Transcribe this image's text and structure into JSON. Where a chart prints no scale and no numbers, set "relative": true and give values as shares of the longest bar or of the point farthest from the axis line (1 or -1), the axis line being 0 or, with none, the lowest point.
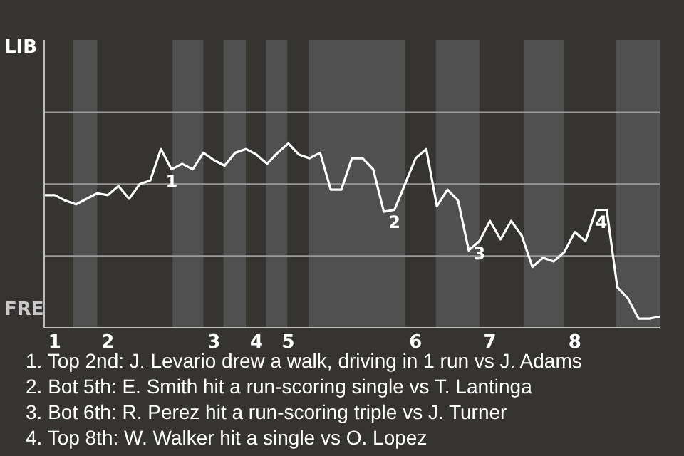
{
  "chart_data": {
    "type": "line",
    "relative": true,
    "categories": [
      null,
      "1",
      null,
      null,
      null,
      null,
      "2",
      null,
      null,
      null,
      null,
      null,
      null,
      null,
      null,
      null,
      "3",
      null,
      null,
      null,
      "4",
      null,
      null,
      "5",
      null,
      null,
      null,
      null,
      null,
      null,
      null,
      null,
      null,
      null,
      null,
      "6",
      null,
      null,
      null,
      null,
      null,
      null,
      "7",
      null,
      null,
      null,
      null,
      null,
      null,
      null,
      "8",
      null,
      null,
      null,
      null,
      null,
      null,
      null,
      null
    ],
    "series": [
      {
        "color": "#ffffff",
        "values": [
          0.72,
          0.72,
          0.69,
          0.67,
          0.7,
          0.73,
          0.72,
          0.77,
          0.7,
          0.78,
          0.8,
          0.97,
          0.86,
          0.89,
          0.86,
          0.95,
          0.91,
          0.88,
          0.95,
          0.97,
          0.94,
          0.89,
          0.95,
          1,
          0.94,
          0.92,
          0.95,
          0.75,
          0.75,
          0.92,
          0.92,
          0.86,
          0.63,
          0.64,
          0.78,
          0.92,
          0.97,
          0.66,
          0.75,
          0.69,
          0.42,
          0.47,
          0.58,
          0.48,
          0.58,
          0.5,
          0.33,
          0.38,
          0.36,
          0.41,
          0.52,
          0.47,
          0.64,
          0.64,
          0.22,
          0.16,
          0.05,
          0.05,
          0.06
        ]
      }
    ],
    "ref_lines": [
      {
        "axis": "y",
        "value": 0.39,
        "color": "#9a9a9a"
      },
      {
        "axis": "y",
        "value": 0.78,
        "color": "#9a9a9a"
      },
      {
        "axis": "y",
        "value": 1.17,
        "color": "#9a9a9a"
      }
    ],
    "annotations": [
      "LIB",
      "FRE",
      "1",
      "2",
      "3",
      "4",
      "1. Top 2nd: J. Levario drew a walk, driving in 1 run vs J. Adams",
      "2. Bot 5th: E. Smith hit a run-scoring single vs T. Lantinga",
      "3. Bot 6th: R. Perez hit a run-scoring triple vs J. Turner",
      "4. Top 8th: W. Walker hit a single vs O. Lopez"
    ]
  }
}
